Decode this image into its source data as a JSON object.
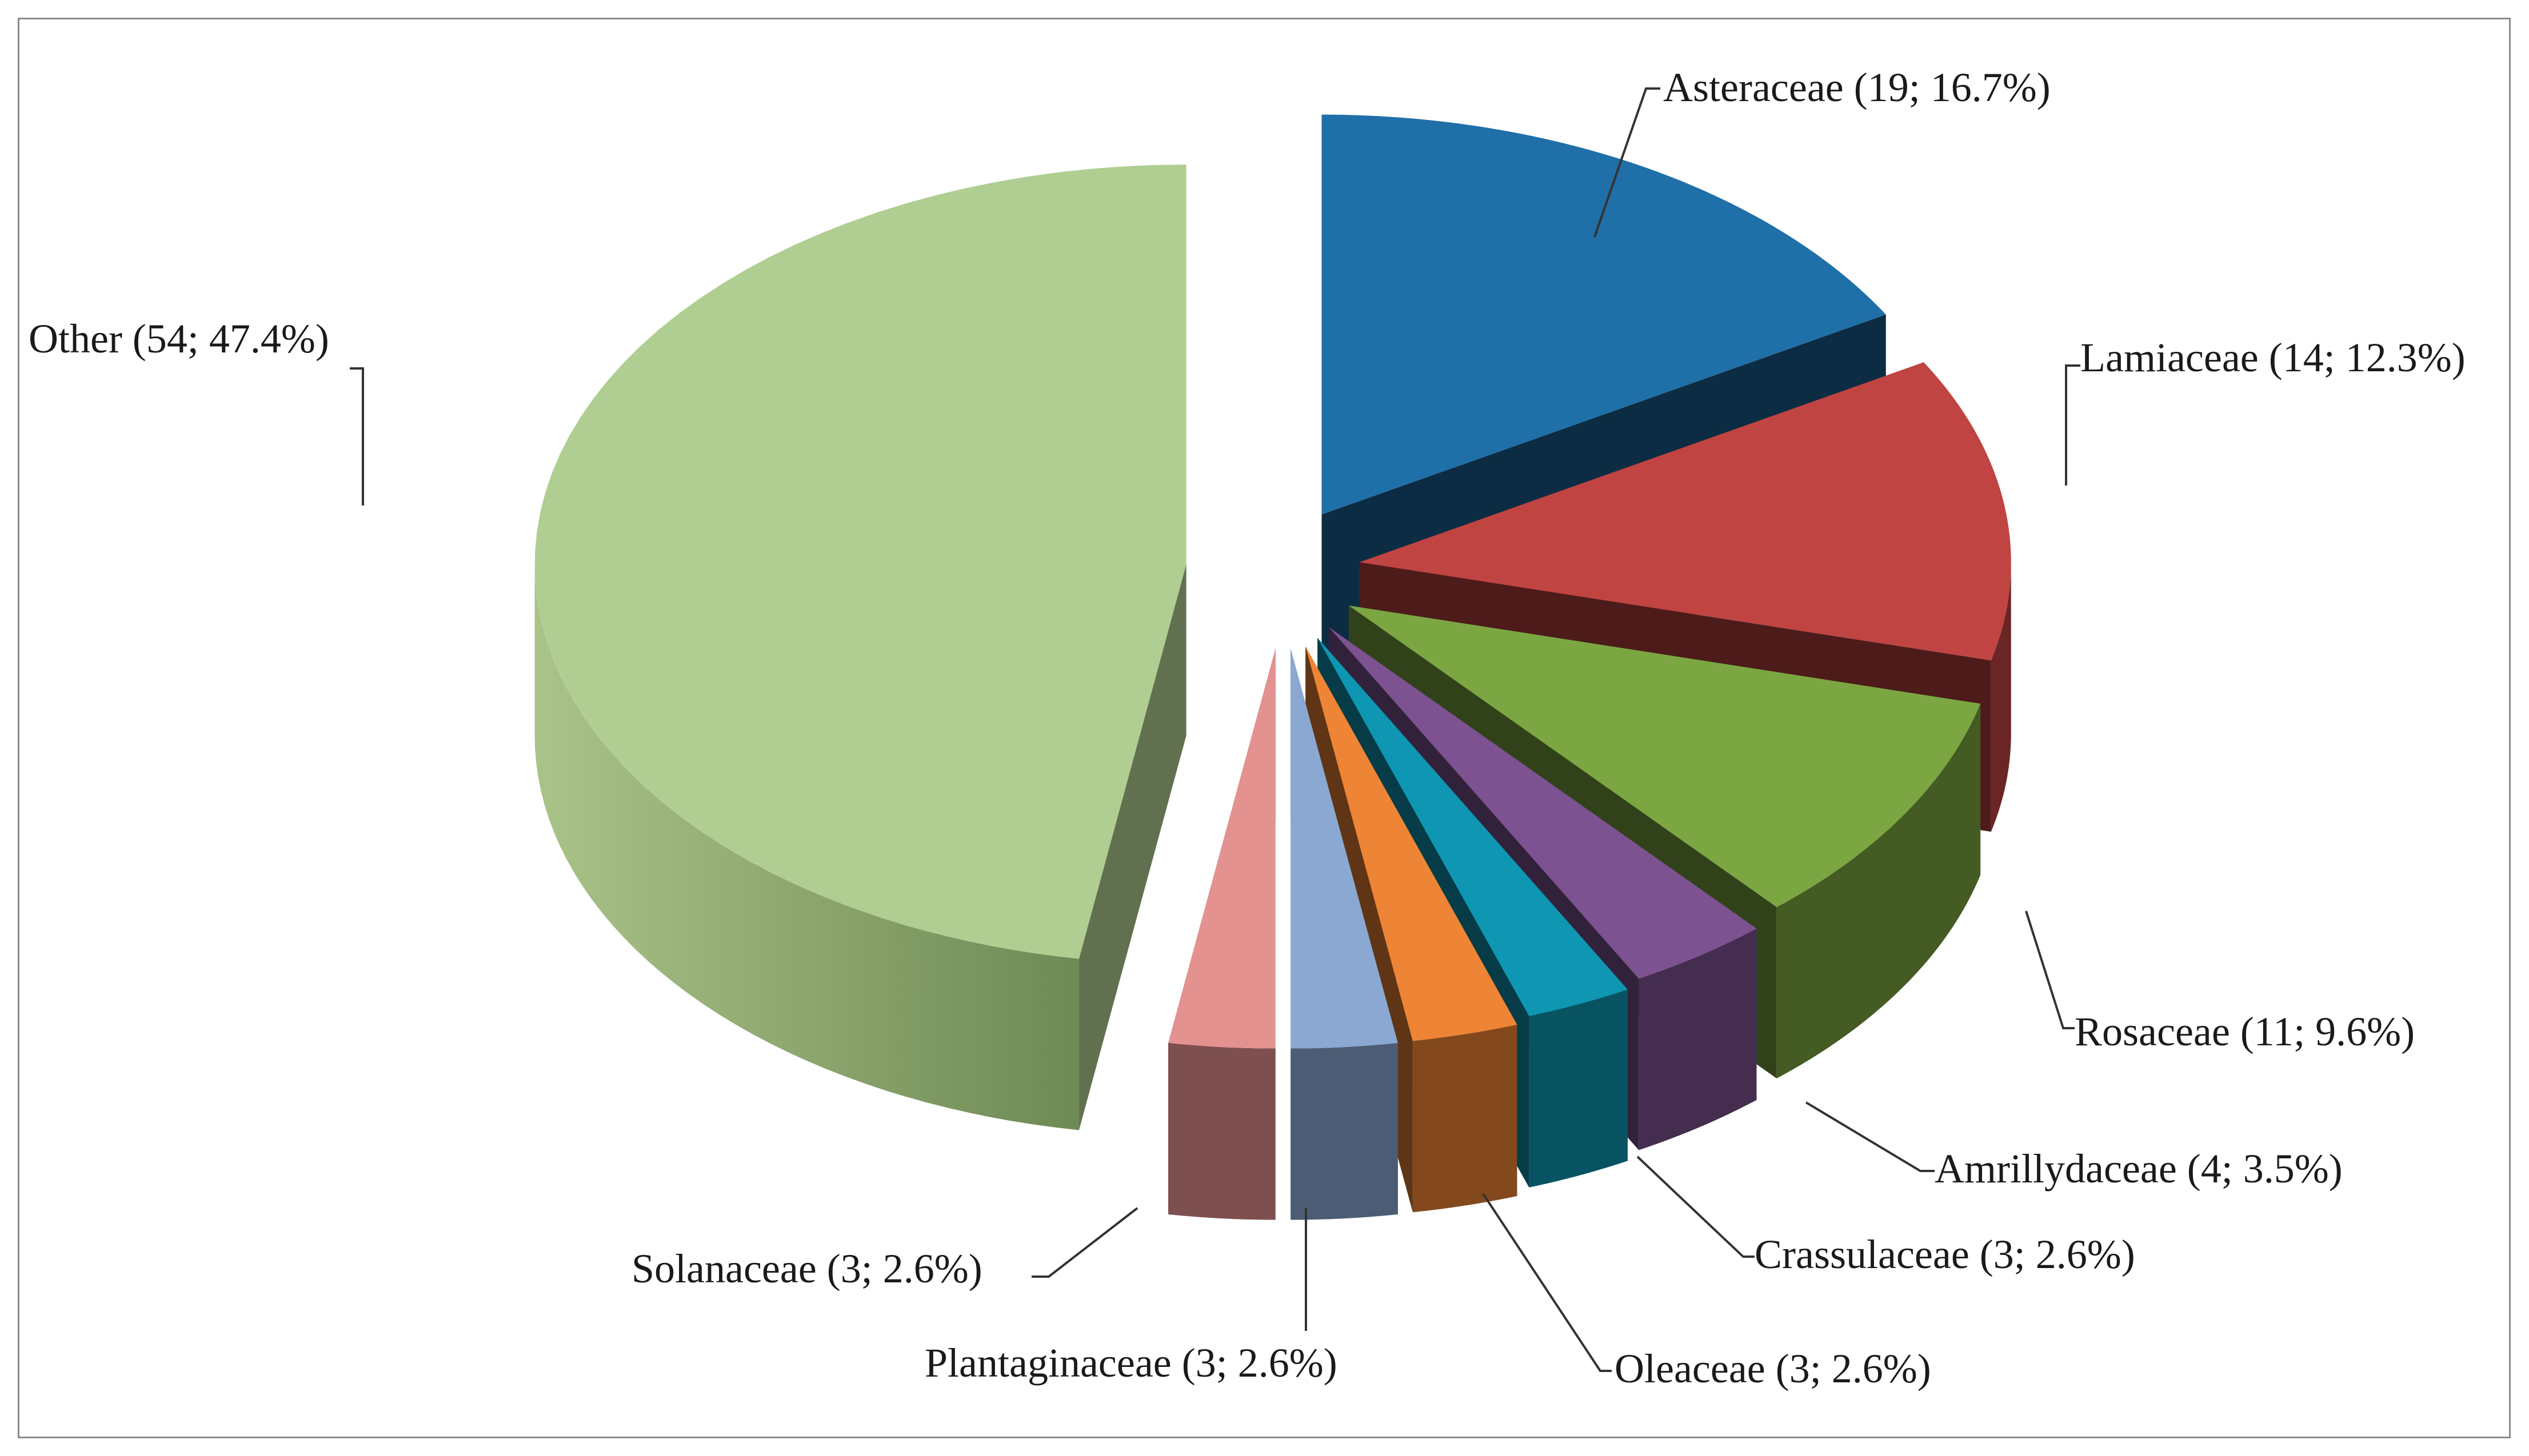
{
  "chart_data": {
    "type": "pie",
    "title": "",
    "slices": [
      {
        "name": "Asteraceae",
        "count": 19,
        "percent": "16.7%",
        "label": "Asteraceae (19; 16.7%)",
        "color": "#1f6fa8"
      },
      {
        "name": "Lamiaceae",
        "count": 14,
        "percent": "12.3%",
        "label": "Lamiaceae (14; 12.3%)",
        "color": "#c04442"
      },
      {
        "name": "Rosaceae",
        "count": 11,
        "percent": "9.6%",
        "label": "Rosaceae (11; 9.6%)",
        "color": "#7ba642"
      },
      {
        "name": "Amrillydaceae",
        "count": 4,
        "percent": "3.5%",
        "label": "Amrillydaceae (4; 3.5%)",
        "color": "#7c5290"
      },
      {
        "name": "Crassulaceae",
        "count": 3,
        "percent": "2.6%",
        "label": "Crassulaceae (3; 2.6%)",
        "color": "#0e96b2"
      },
      {
        "name": "Oleaceae",
        "count": 3,
        "percent": "2.6%",
        "label": "Oleaceae (3; 2.6%)",
        "color": "#ee8435"
      },
      {
        "name": "Plantaginaceae",
        "count": 3,
        "percent": "2.6%",
        "label": "Plantaginaceae (3; 2.6%)",
        "color": "#8aa8d2"
      },
      {
        "name": "Solanaceae",
        "count": 3,
        "percent": "2.6%",
        "label": "Solanaceae (3; 2.6%)",
        "color": "#e49290"
      },
      {
        "name": "Other",
        "count": 54,
        "percent": "47.4%",
        "label": "Other (54; 47.4%)",
        "color": "#b0ce91"
      }
    ],
    "style": "3d-exploded",
    "legend": "none"
  }
}
